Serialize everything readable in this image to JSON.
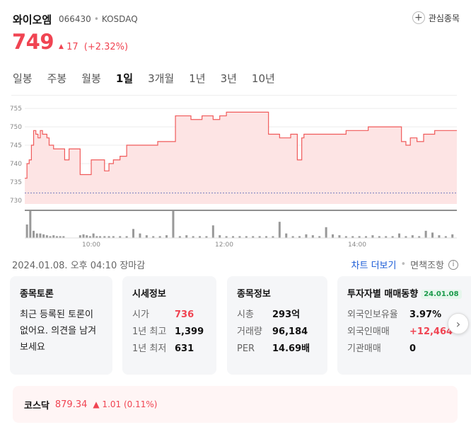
{
  "stock": {
    "name": "와이오엠",
    "code": "066430",
    "market": "KOSDAQ",
    "price": "749",
    "change_arrow": "▲",
    "change_value": "17",
    "change_pct": "(+2.32%)"
  },
  "favorite": {
    "label": "관심종목"
  },
  "tabs": [
    {
      "label": "일봉",
      "active": false
    },
    {
      "label": "주봉",
      "active": false
    },
    {
      "label": "월봉",
      "active": false
    },
    {
      "label": "1일",
      "active": true
    },
    {
      "label": "3개월",
      "active": false
    },
    {
      "label": "1년",
      "active": false
    },
    {
      "label": "3년",
      "active": false
    },
    {
      "label": "10년",
      "active": false
    }
  ],
  "status": {
    "datetime": "2024.01.08. 오후 04:10 장마감",
    "more_label": "차트 더보기",
    "exempt_label": "면책조항",
    "info_icon": "i"
  },
  "cards": {
    "discussion": {
      "title": "종목토론",
      "body": "최근 등록된 토론이 없어요. 의견을 남겨보세요"
    },
    "market_info": {
      "title": "시세정보",
      "rows": [
        {
          "label": "시가",
          "value": "736"
        },
        {
          "label": "1년 최고",
          "value": "1,399"
        },
        {
          "label": "1년 최저",
          "value": "631"
        }
      ]
    },
    "stock_info": {
      "title": "종목정보",
      "rows": [
        {
          "label": "시총",
          "value": "293억"
        },
        {
          "label": "거래량",
          "value": "96,184"
        },
        {
          "label": "PER",
          "value": "14.69배"
        }
      ]
    },
    "investor": {
      "title": "투자자별 매매동향",
      "badge": "24.01.08",
      "rows": [
        {
          "label": "외국인보유율",
          "value": "3.97%"
        },
        {
          "label": "외국인매매",
          "value": "+12,464"
        },
        {
          "label": "기관매매",
          "value": "0"
        }
      ]
    }
  },
  "index": {
    "label": "코스닥",
    "value": "879.34",
    "change": "▲ 1.01 (0.11%)"
  },
  "colors": {
    "up": "#f04452",
    "area_fill": "#fde4e4",
    "line": "#f05a5a",
    "volume": "#999999"
  },
  "chart_data": {
    "type": "area",
    "title": "",
    "xlabel": "",
    "ylabel": "",
    "y_ticks": [
      730,
      735,
      740,
      745,
      750,
      755
    ],
    "ylim": [
      729,
      756
    ],
    "x_tick_labels": [
      "10:00",
      "12:00",
      "14:00"
    ],
    "x_ticks_minutes": [
      60,
      180,
      300
    ],
    "x_range_minutes": [
      0,
      390
    ],
    "reference_value": 732,
    "grid": true,
    "price_series": {
      "name": "",
      "x_minutes": [
        0,
        2,
        4,
        6,
        8,
        10,
        12,
        14,
        16,
        18,
        20,
        22,
        24,
        26,
        30,
        36,
        40,
        46,
        50,
        52,
        54,
        60,
        64,
        66,
        68,
        72,
        74,
        76,
        80,
        86,
        92,
        100,
        110,
        120,
        130,
        136,
        140,
        150,
        160,
        170,
        176,
        182,
        188,
        194,
        200,
        210,
        220,
        230,
        240,
        246,
        248,
        250,
        252,
        256,
        262,
        270,
        278,
        290,
        296,
        300,
        310,
        322,
        330,
        340,
        344,
        348,
        352,
        354,
        360,
        370,
        376,
        380,
        386,
        390
      ],
      "values": [
        736,
        740,
        741,
        745,
        749,
        748,
        747,
        749,
        748,
        748,
        747,
        745,
        745,
        744,
        744,
        741,
        744,
        744,
        737,
        737,
        737,
        741,
        741,
        741,
        741,
        738,
        738,
        740,
        741,
        742,
        745,
        745,
        745,
        746,
        746,
        753,
        753,
        752,
        753,
        752,
        753,
        754,
        754,
        754,
        754,
        754,
        748,
        747,
        748,
        741,
        741,
        747,
        748,
        748,
        748,
        748,
        748,
        749,
        749,
        749,
        750,
        750,
        750,
        746,
        745,
        747,
        747,
        746,
        748,
        749,
        749,
        749,
        749,
        749
      ]
    },
    "volume_series": {
      "name": "",
      "x_minutes": [
        2,
        5,
        8,
        11,
        14,
        17,
        20,
        23,
        26,
        29,
        32,
        35,
        50,
        53,
        56,
        59,
        62,
        65,
        68,
        72,
        76,
        80,
        86,
        92,
        98,
        104,
        110,
        116,
        122,
        128,
        134,
        140,
        146,
        152,
        158,
        164,
        170,
        176,
        182,
        188,
        194,
        200,
        206,
        212,
        218,
        224,
        230,
        236,
        242,
        248,
        254,
        260,
        266,
        272,
        278,
        284,
        290,
        296,
        302,
        308,
        314,
        320,
        326,
        332,
        338,
        344,
        350,
        356,
        362,
        368,
        374,
        380,
        386
      ],
      "values": [
        15,
        30,
        8,
        5,
        5,
        4,
        3,
        2,
        3,
        2,
        2,
        2,
        3,
        4,
        3,
        2,
        5,
        2,
        2,
        2,
        2,
        2,
        2,
        2,
        10,
        5,
        3,
        2,
        2,
        3,
        30,
        2,
        3,
        2,
        2,
        2,
        14,
        3,
        2,
        2,
        2,
        2,
        2,
        2,
        2,
        2,
        18,
        5,
        2,
        2,
        4,
        3,
        2,
        12,
        4,
        3,
        2,
        2,
        2,
        2,
        3,
        2,
        2,
        2,
        5,
        2,
        3,
        2,
        8,
        6,
        3,
        2,
        4
      ]
    }
  }
}
